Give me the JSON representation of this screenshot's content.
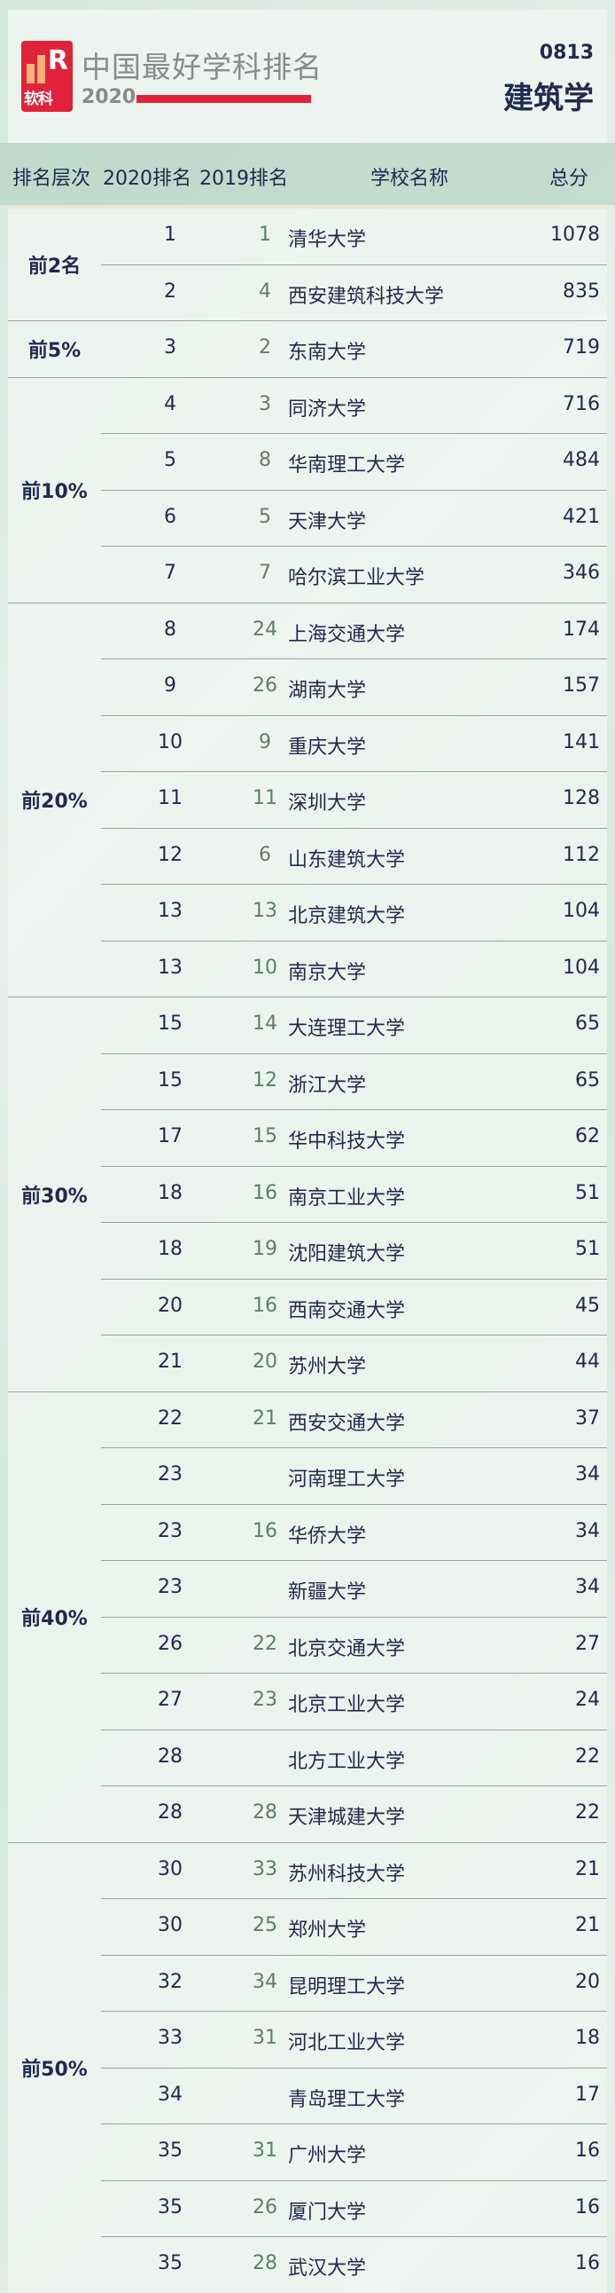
{
  "header": {
    "logo_text": "软科",
    "title": "中国最好学科排名",
    "year": "2020",
    "subject_code": "0813",
    "subject_name": "建筑学",
    "brand_color": "#e0233a"
  },
  "columns": {
    "tier": "排名层次",
    "rank2020": "2020排名",
    "rank2019": "2019排名",
    "school": "学校名称",
    "score": "总分"
  },
  "groups": [
    {
      "tier": "前2名",
      "rows": [
        [
          "1",
          "1",
          "清华大学",
          "1078"
        ],
        [
          "2",
          "4",
          "西安建筑科技大学",
          "835"
        ]
      ]
    },
    {
      "tier": "前5%",
      "rows": [
        [
          "3",
          "2",
          "东南大学",
          "719"
        ]
      ]
    },
    {
      "tier": "前10%",
      "rows": [
        [
          "4",
          "3",
          "同济大学",
          "716"
        ],
        [
          "5",
          "8",
          "华南理工大学",
          "484"
        ],
        [
          "6",
          "5",
          "天津大学",
          "421"
        ],
        [
          "7",
          "7",
          "哈尔滨工业大学",
          "346"
        ]
      ]
    },
    {
      "tier": "前20%",
      "rows": [
        [
          "8",
          "24",
          "上海交通大学",
          "174"
        ],
        [
          "9",
          "26",
          "湖南大学",
          "157"
        ],
        [
          "10",
          "9",
          "重庆大学",
          "141"
        ],
        [
          "11",
          "11",
          "深圳大学",
          "128"
        ],
        [
          "12",
          "6",
          "山东建筑大学",
          "112"
        ],
        [
          "13",
          "13",
          "北京建筑大学",
          "104"
        ],
        [
          "13",
          "10",
          "南京大学",
          "104"
        ]
      ]
    },
    {
      "tier": "前30%",
      "rows": [
        [
          "15",
          "14",
          "大连理工大学",
          "65"
        ],
        [
          "15",
          "12",
          "浙江大学",
          "65"
        ],
        [
          "17",
          "15",
          "华中科技大学",
          "62"
        ],
        [
          "18",
          "16",
          "南京工业大学",
          "51"
        ],
        [
          "18",
          "19",
          "沈阳建筑大学",
          "51"
        ],
        [
          "20",
          "16",
          "西南交通大学",
          "45"
        ],
        [
          "21",
          "20",
          "苏州大学",
          "44"
        ]
      ]
    },
    {
      "tier": "前40%",
      "rows": [
        [
          "22",
          "21",
          "西安交通大学",
          "37"
        ],
        [
          "23",
          "",
          "河南理工大学",
          "34"
        ],
        [
          "23",
          "16",
          "华侨大学",
          "34"
        ],
        [
          "23",
          "",
          "新疆大学",
          "34"
        ],
        [
          "26",
          "22",
          "北京交通大学",
          "27"
        ],
        [
          "27",
          "23",
          "北京工业大学",
          "24"
        ],
        [
          "28",
          "",
          "北方工业大学",
          "22"
        ],
        [
          "28",
          "28",
          "天津城建大学",
          "22"
        ]
      ]
    },
    {
      "tier": "前50%",
      "rows": [
        [
          "30",
          "33",
          "苏州科技大学",
          "21"
        ],
        [
          "30",
          "25",
          "郑州大学",
          "21"
        ],
        [
          "32",
          "34",
          "昆明理工大学",
          "20"
        ],
        [
          "33",
          "31",
          "河北工业大学",
          "18"
        ],
        [
          "34",
          "",
          "青岛理工大学",
          "17"
        ],
        [
          "35",
          "31",
          "广州大学",
          "16"
        ],
        [
          "35",
          "26",
          "厦门大学",
          "16"
        ],
        [
          "35",
          "28",
          "武汉大学",
          "16"
        ]
      ]
    }
  ]
}
